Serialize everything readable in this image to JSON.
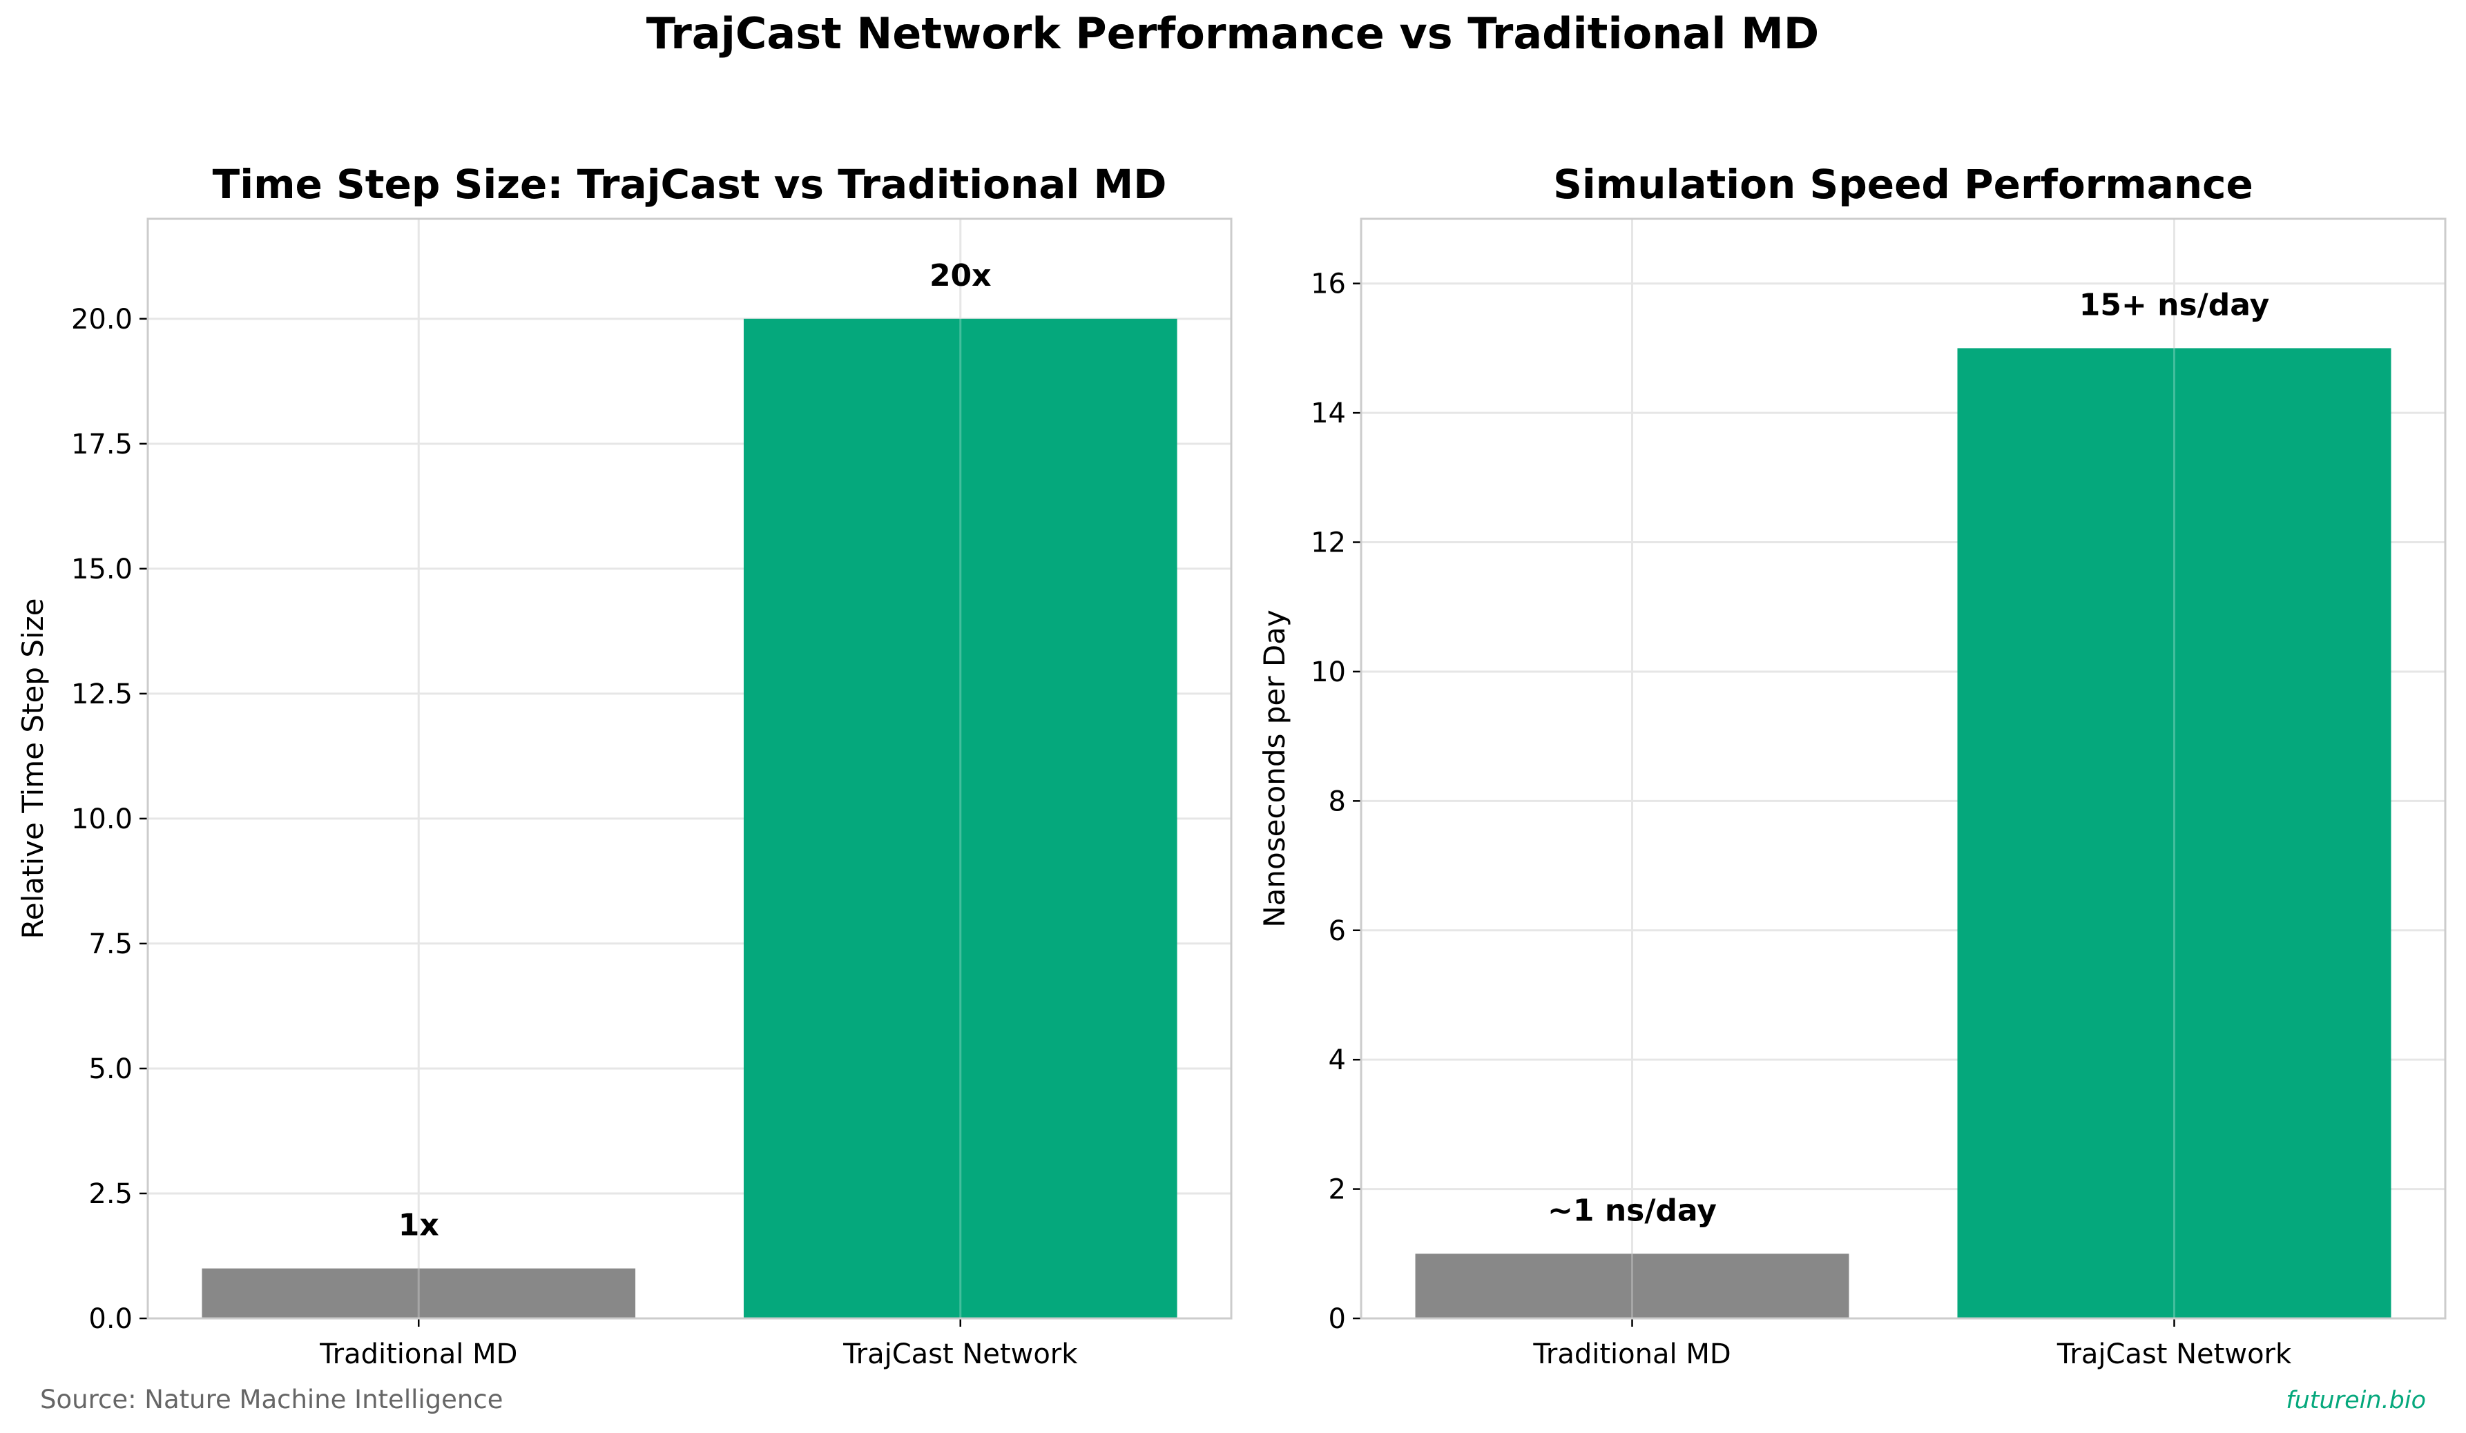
{
  "figure": {
    "title": "TrajCast Network Performance vs Traditional MD",
    "source": "Source: Nature Machine Intelligence",
    "brand": "futurein.bio"
  },
  "colors": {
    "traditional": "#888888",
    "trajcast": "#05a87c",
    "grid": "#e6e6e6",
    "axis": "#cccccc",
    "brand": "#05a87c",
    "source": "#666666"
  },
  "chart_data": [
    {
      "type": "bar",
      "title": "Time Step Size: TrajCast vs Traditional MD",
      "xlabel": "",
      "ylabel": "Relative Time Step Size",
      "categories": [
        "Traditional MD",
        "TrajCast Network"
      ],
      "values": [
        1,
        20
      ],
      "bar_labels": [
        "1x",
        "20x"
      ],
      "ylim": [
        0,
        22
      ],
      "yticks": [
        0.0,
        2.5,
        5.0,
        7.5,
        10.0,
        12.5,
        15.0,
        17.5,
        20.0
      ],
      "ytick_labels": [
        "0.0",
        "2.5",
        "5.0",
        "7.5",
        "10.0",
        "12.5",
        "15.0",
        "17.5",
        "20.0"
      ],
      "grid": true
    },
    {
      "type": "bar",
      "title": "Simulation Speed Performance",
      "xlabel": "",
      "ylabel": "Nanoseconds per Day",
      "categories": [
        "Traditional MD",
        "TrajCast Network"
      ],
      "values": [
        1,
        15
      ],
      "bar_labels": [
        "~1 ns/day",
        "15+ ns/day"
      ],
      "ylim": [
        0,
        17
      ],
      "yticks": [
        0,
        2,
        4,
        6,
        8,
        10,
        12,
        14,
        16
      ],
      "ytick_labels": [
        "0",
        "2",
        "4",
        "6",
        "8",
        "10",
        "12",
        "14",
        "16"
      ],
      "grid": true
    }
  ]
}
